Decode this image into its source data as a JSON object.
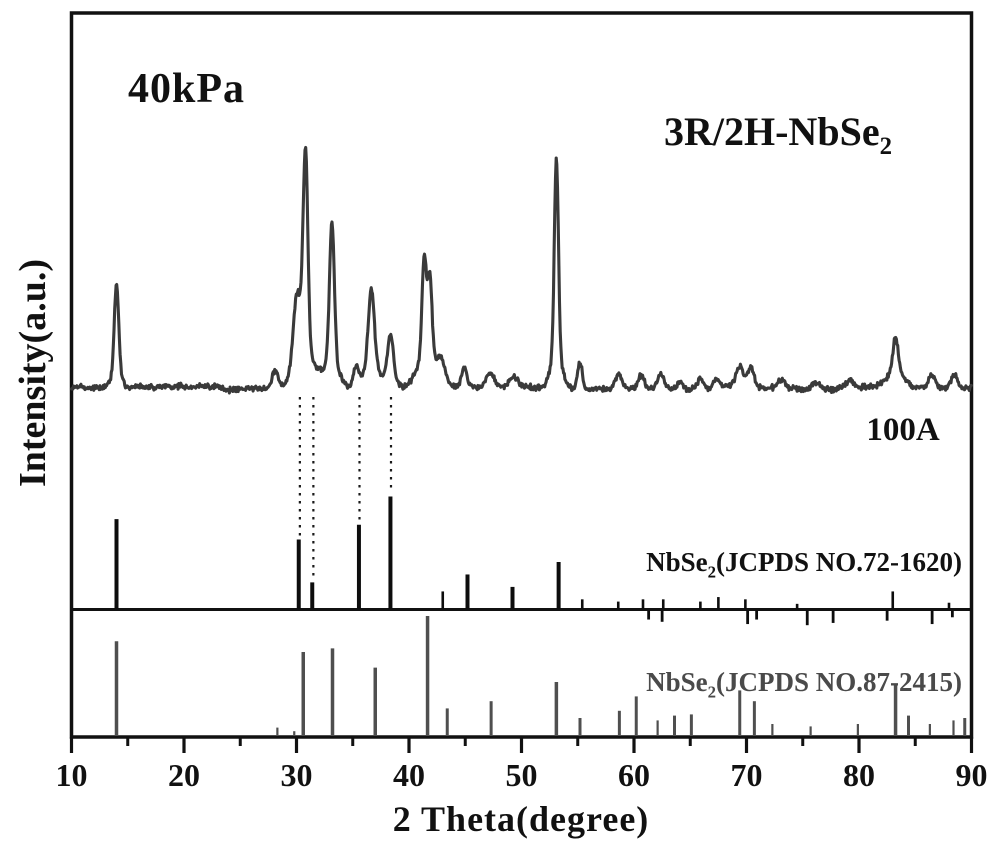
{
  "figure": {
    "background": "#ffffff",
    "labels": {
      "pressure": "40kPa",
      "phase_main": "3R/2H-NbSe",
      "phase_sub": "2",
      "sample": "100A",
      "ref1_main": "NbSe",
      "ref1_sub": "2",
      "ref1_rest": "(JCPDS NO.72-1620)",
      "ref2_main": "NbSe",
      "ref2_sub": "2",
      "ref2_rest": "(JCPDS NO.87-2415)",
      "xlabel": "2 Theta(degree)",
      "ylabel": "Intensity(a.u.)"
    },
    "colors": {
      "frame": "#111111",
      "trace": "#3a3a3a",
      "ref1_sticks": "#0d0d0d",
      "ref2_sticks": "#4f4f4f",
      "guide_dots": "#1a1a1a",
      "text": "#111111",
      "ref2_text": "#4a4a4a"
    }
  },
  "chart_data": {
    "type": "line",
    "title": "",
    "xlabel": "2 Theta(degree)",
    "ylabel": "Intensity(a.u.)",
    "xlim": [
      10,
      90
    ],
    "x_major_ticks": [
      10,
      20,
      30,
      40,
      50,
      60,
      70,
      80,
      90
    ],
    "x_minor_tick_step": 5,
    "ylim": [
      0,
      110
    ],
    "grid": false,
    "legend_position": "none",
    "annotations": [
      {
        "text": "40kPa",
        "position": "top-left"
      },
      {
        "text": "3R/2H-NbSe2",
        "position": "top-right"
      },
      {
        "text": "100A",
        "position": "right, below trace baseline"
      },
      {
        "text": "NbSe2(JCPDS NO.72-1620)",
        "position": "middle reference panel, right"
      },
      {
        "text": "NbSe2(JCPDS NO.87-2415)",
        "position": "bottom reference panel, right"
      }
    ],
    "guide_lines_two_theta": [
      30.3,
      31.5,
      35.6,
      38.4
    ],
    "series": [
      {
        "name": "3R/2H-NbSe2 XRD trace (40kPa, sample 100A)",
        "kind": "noisy-trace",
        "baseline_intensity": 0,
        "noise_amplitude": 1.4,
        "peaks": [
          {
            "two_theta": 14.0,
            "intensity": 38,
            "fwhm": 0.45
          },
          {
            "two_theta": 14.0,
            "intensity": 7,
            "fwhm": 1.2
          },
          {
            "two_theta": 28.1,
            "intensity": 8,
            "fwhm": 0.7
          },
          {
            "two_theta": 30.05,
            "intensity": 31,
            "fwhm": 0.8
          },
          {
            "two_theta": 30.8,
            "intensity": 86,
            "fwhm": 0.5
          },
          {
            "two_theta": 30.8,
            "intensity": 14,
            "fwhm": 2.2
          },
          {
            "two_theta": 33.15,
            "intensity": 60,
            "fwhm": 0.5
          },
          {
            "two_theta": 33.15,
            "intensity": 11,
            "fwhm": 1.6
          },
          {
            "two_theta": 35.3,
            "intensity": 9,
            "fwhm": 0.6
          },
          {
            "two_theta": 36.65,
            "intensity": 31,
            "fwhm": 0.6
          },
          {
            "two_theta": 36.65,
            "intensity": 12,
            "fwhm": 1.4
          },
          {
            "two_theta": 38.35,
            "intensity": 16,
            "fwhm": 0.55
          },
          {
            "two_theta": 38.35,
            "intensity": 7,
            "fwhm": 1.2
          },
          {
            "two_theta": 41.35,
            "intensity": 42,
            "fwhm": 0.45
          },
          {
            "two_theta": 41.85,
            "intensity": 34,
            "fwhm": 0.45
          },
          {
            "two_theta": 41.6,
            "intensity": 14,
            "fwhm": 2.0
          },
          {
            "two_theta": 42.9,
            "intensity": 8,
            "fwhm": 0.8
          },
          {
            "two_theta": 44.9,
            "intensity": 8,
            "fwhm": 0.55
          },
          {
            "two_theta": 47.2,
            "intensity": 6,
            "fwhm": 0.8
          },
          {
            "two_theta": 49.3,
            "intensity": 4,
            "fwhm": 0.8
          },
          {
            "two_theta": 53.1,
            "intensity": 82,
            "fwhm": 0.42
          },
          {
            "two_theta": 53.1,
            "intensity": 15,
            "fwhm": 1.1
          },
          {
            "two_theta": 55.2,
            "intensity": 12,
            "fwhm": 0.5
          },
          {
            "two_theta": 58.6,
            "intensity": 6,
            "fwhm": 0.7
          },
          {
            "two_theta": 60.6,
            "intensity": 5.5,
            "fwhm": 0.7
          },
          {
            "two_theta": 62.4,
            "intensity": 6,
            "fwhm": 0.7
          },
          {
            "two_theta": 64.1,
            "intensity": 3.5,
            "fwhm": 0.6
          },
          {
            "two_theta": 65.9,
            "intensity": 4.5,
            "fwhm": 0.7
          },
          {
            "two_theta": 67.3,
            "intensity": 3.5,
            "fwhm": 0.6
          },
          {
            "two_theta": 69.4,
            "intensity": 9,
            "fwhm": 0.8
          },
          {
            "two_theta": 70.4,
            "intensity": 9,
            "fwhm": 0.7
          },
          {
            "two_theta": 73.1,
            "intensity": 3.5,
            "fwhm": 0.8
          },
          {
            "two_theta": 76.2,
            "intensity": 3,
            "fwhm": 0.8
          },
          {
            "two_theta": 79.2,
            "intensity": 3,
            "fwhm": 0.8
          },
          {
            "two_theta": 83.25,
            "intensity": 15,
            "fwhm": 0.55
          },
          {
            "two_theta": 83.25,
            "intensity": 6,
            "fwhm": 1.8
          },
          {
            "two_theta": 86.5,
            "intensity": 6,
            "fwhm": 0.7
          },
          {
            "two_theta": 88.5,
            "intensity": 5.5,
            "fwhm": 0.7
          }
        ]
      },
      {
        "name": "NbSe2 (JCPDS NO.72-1620) reference pattern",
        "kind": "sticks",
        "sticks": [
          {
            "two_theta": 14.0,
            "intensity": 80
          },
          {
            "two_theta": 30.2,
            "intensity": 62
          },
          {
            "two_theta": 31.4,
            "intensity": 24
          },
          {
            "two_theta": 35.55,
            "intensity": 75
          },
          {
            "two_theta": 38.35,
            "intensity": 100
          },
          {
            "two_theta": 43.0,
            "intensity": 16
          },
          {
            "two_theta": 45.2,
            "intensity": 31
          },
          {
            "two_theta": 49.2,
            "intensity": 20
          },
          {
            "two_theta": 53.3,
            "intensity": 42
          },
          {
            "two_theta": 55.4,
            "intensity": 9
          },
          {
            "two_theta": 58.6,
            "intensity": 7
          },
          {
            "two_theta": 60.8,
            "intensity": 9
          },
          {
            "two_theta": 62.6,
            "intensity": 9
          },
          {
            "two_theta": 65.9,
            "intensity": 7
          },
          {
            "two_theta": 67.5,
            "intensity": 11
          },
          {
            "two_theta": 69.9,
            "intensity": 9
          },
          {
            "two_theta": 74.5,
            "intensity": 5
          },
          {
            "two_theta": 83.0,
            "intensity": 16
          },
          {
            "two_theta": 88.0,
            "intensity": 6
          }
        ],
        "below_line_ticks": [
          {
            "two_theta": 61.3,
            "intensity": 8
          },
          {
            "two_theta": 62.5,
            "intensity": 10
          },
          {
            "two_theta": 70.1,
            "intensity": 12
          },
          {
            "two_theta": 70.9,
            "intensity": 8
          },
          {
            "two_theta": 75.4,
            "intensity": 13
          },
          {
            "two_theta": 77.7,
            "intensity": 11
          },
          {
            "two_theta": 82.5,
            "intensity": 9
          },
          {
            "two_theta": 86.5,
            "intensity": 12
          },
          {
            "two_theta": 88.3,
            "intensity": 6
          }
        ]
      },
      {
        "name": "NbSe2 (JCPDS NO.87-2415) reference pattern",
        "kind": "sticks",
        "sticks": [
          {
            "two_theta": 14.0,
            "intensity": 79
          },
          {
            "two_theta": 28.3,
            "intensity": 7
          },
          {
            "two_theta": 29.8,
            "intensity": 4
          },
          {
            "two_theta": 30.6,
            "intensity": 70
          },
          {
            "two_theta": 33.2,
            "intensity": 73
          },
          {
            "two_theta": 37.0,
            "intensity": 57
          },
          {
            "two_theta": 41.65,
            "intensity": 100
          },
          {
            "two_theta": 43.4,
            "intensity": 23
          },
          {
            "two_theta": 47.3,
            "intensity": 29
          },
          {
            "two_theta": 53.1,
            "intensity": 45
          },
          {
            "two_theta": 55.2,
            "intensity": 15
          },
          {
            "two_theta": 58.7,
            "intensity": 21
          },
          {
            "two_theta": 60.2,
            "intensity": 33
          },
          {
            "two_theta": 62.1,
            "intensity": 13
          },
          {
            "two_theta": 63.6,
            "intensity": 17
          },
          {
            "two_theta": 65.1,
            "intensity": 18
          },
          {
            "two_theta": 69.4,
            "intensity": 38
          },
          {
            "two_theta": 70.7,
            "intensity": 29
          },
          {
            "two_theta": 72.3,
            "intensity": 10
          },
          {
            "two_theta": 75.7,
            "intensity": 8
          },
          {
            "two_theta": 79.9,
            "intensity": 10
          },
          {
            "two_theta": 83.25,
            "intensity": 43
          },
          {
            "two_theta": 84.4,
            "intensity": 17
          },
          {
            "two_theta": 86.3,
            "intensity": 10
          },
          {
            "two_theta": 88.4,
            "intensity": 13
          },
          {
            "two_theta": 89.4,
            "intensity": 15
          }
        ]
      }
    ]
  }
}
